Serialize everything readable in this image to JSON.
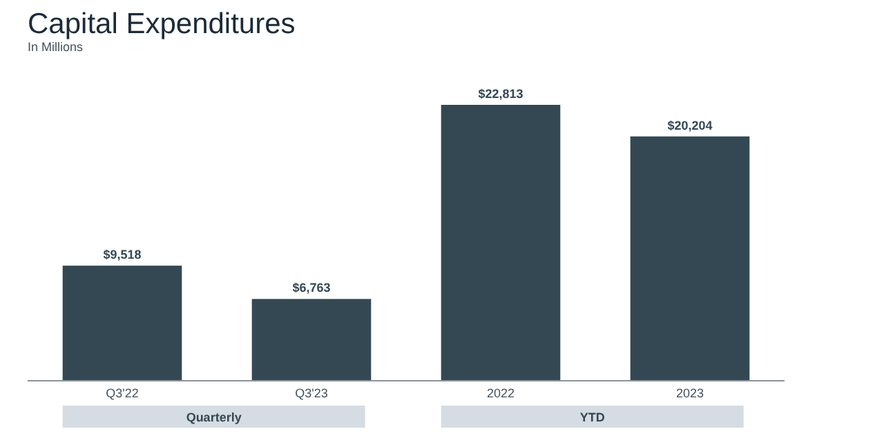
{
  "chart_data": {
    "type": "bar",
    "title": "Capital Expenditures",
    "subtitle": "In Millions",
    "categories": [
      "Q3'22",
      "Q3'23",
      "2022",
      "2023"
    ],
    "values": [
      9518,
      6763,
      22813,
      20204
    ],
    "value_labels": [
      "$9,518",
      "$6,763",
      "$22,813",
      "$20,204"
    ],
    "color": "#344854",
    "annotations": [
      "Quarterly",
      "YTD"
    ]
  }
}
